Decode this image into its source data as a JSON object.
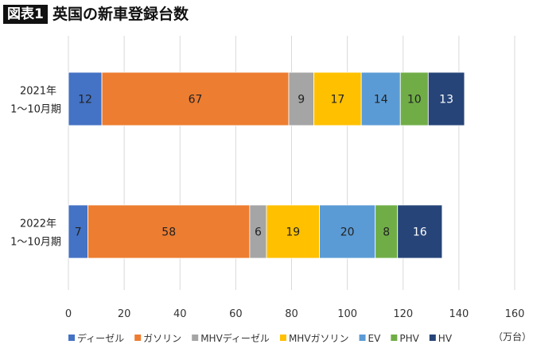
{
  "header": {
    "badge": "図表1",
    "title": "英国の新車登録台数"
  },
  "chart_data": {
    "type": "bar",
    "orientation": "horizontal",
    "stacked": true,
    "title": "英国の新車登録台数",
    "categories": [
      [
        "2021年",
        "1〜10月期"
      ],
      [
        "2022年",
        "1〜10月期"
      ]
    ],
    "series": [
      {
        "name": "ディーゼル",
        "color": "#4472C4",
        "values": [
          12,
          7
        ]
      },
      {
        "name": "ガソリン",
        "color": "#ED7D31",
        "values": [
          67,
          58
        ]
      },
      {
        "name": "MHVディーゼル",
        "color": "#A5A5A5",
        "values": [
          9,
          6
        ]
      },
      {
        "name": "MHVガソリン",
        "color": "#FFC000",
        "values": [
          17,
          19
        ]
      },
      {
        "name": "EV",
        "color": "#5B9BD5",
        "values": [
          14,
          20
        ]
      },
      {
        "name": "PHV",
        "color": "#70AD47",
        "values": [
          10,
          8
        ]
      },
      {
        "name": "HV",
        "color": "#264478",
        "values": [
          13,
          16
        ]
      }
    ],
    "xlim": [
      0,
      160
    ],
    "xticks": [
      0,
      20,
      40,
      60,
      80,
      100,
      120,
      140,
      160
    ],
    "unit_label": "（万台）",
    "grid": true,
    "legend": "bottom"
  }
}
